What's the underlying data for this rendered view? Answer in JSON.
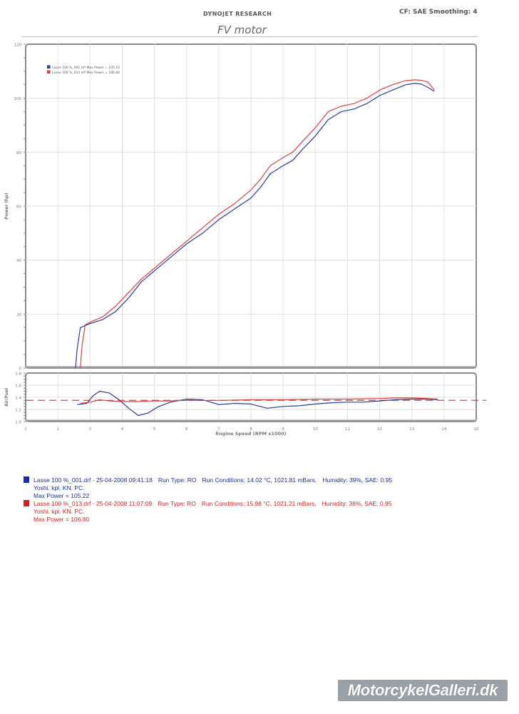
{
  "header": {
    "title": "DYNOJET RESEARCH",
    "subtitle": "FV motor",
    "correction": "CF: SAE  Smoothing: 4"
  },
  "chart_data": [
    {
      "type": "line",
      "title": "FV motor",
      "xlabel": "Engine Speed (RPM x1000)",
      "ylabel": "Power (hp)",
      "xlim": [
        1,
        15
      ],
      "ylim": [
        0,
        120
      ],
      "xticks": [
        "1",
        "2",
        "3",
        "4",
        "5",
        "6",
        "7",
        "8",
        "9",
        "10",
        "11",
        "12",
        "13",
        "14",
        "15"
      ],
      "yticks": [
        "0",
        "20",
        "40",
        "60",
        "80",
        "100",
        "120"
      ],
      "grid": true,
      "legend_position": "upper-left",
      "legend": [
        "Lasse 100 %_001.drf Max Power = 105.22",
        "Lasse 100 %_013.drf Max Power = 106.80"
      ],
      "series": [
        {
          "name": "Lasse 100 %_001.drf",
          "color": "#2a3a9a",
          "x": [
            2.55,
            2.6,
            2.7,
            3.0,
            3.4,
            3.8,
            4.2,
            4.6,
            5.0,
            5.5,
            6.0,
            6.5,
            7.0,
            7.5,
            8.0,
            8.3,
            8.6,
            9.0,
            9.3,
            9.6,
            10.0,
            10.4,
            10.8,
            11.2,
            11.6,
            12.0,
            12.4,
            12.8,
            13.1,
            13.3,
            13.5,
            13.7
          ],
          "y": [
            0,
            7,
            15,
            16.5,
            18,
            21,
            26,
            32,
            36,
            41,
            46,
            50,
            55,
            59,
            63,
            67,
            72,
            75,
            77,
            81,
            86,
            92,
            95,
            96,
            98,
            101,
            103,
            105,
            105.5,
            105.2,
            104,
            102.5
          ]
        },
        {
          "name": "Lasse 100 %_013.drf",
          "color": "#d94040",
          "x": [
            2.7,
            2.75,
            2.85,
            3.0,
            3.4,
            3.8,
            4.2,
            4.6,
            5.0,
            5.5,
            6.0,
            6.5,
            7.0,
            7.5,
            8.0,
            8.3,
            8.6,
            9.0,
            9.3,
            9.6,
            10.0,
            10.4,
            10.8,
            11.2,
            11.6,
            12.0,
            12.4,
            12.8,
            13.1,
            13.3,
            13.5,
            13.7
          ],
          "y": [
            0,
            8,
            16,
            17,
            19,
            23,
            28,
            33,
            37,
            42,
            47,
            52,
            57,
            61,
            66,
            70,
            75,
            78,
            80,
            84,
            89,
            95,
            97,
            98,
            100,
            103,
            105,
            106.5,
            106.8,
            106.6,
            106,
            103
          ]
        }
      ]
    },
    {
      "type": "line",
      "title": "",
      "xlabel": "Engine Speed (RPM x1000)",
      "ylabel": "Air/Fuel",
      "xlim": [
        1,
        15
      ],
      "ylim": [
        1.0,
        1.8
      ],
      "xticks": [
        "1",
        "2",
        "3",
        "4",
        "5",
        "6",
        "7",
        "8",
        "9",
        "10",
        "11",
        "12",
        "13",
        "14",
        "15"
      ],
      "yticks": [
        "1.0",
        "1.2",
        "1.4",
        "1.6",
        "1.8"
      ],
      "grid": true,
      "reference_line": {
        "value": 1.35,
        "style": "dashed",
        "color": "#d94040"
      },
      "series": [
        {
          "name": "Lasse 100 %_001.drf",
          "color": "#2a3a9a",
          "x": [
            2.6,
            2.9,
            3.1,
            3.3,
            3.6,
            3.9,
            4.2,
            4.5,
            4.8,
            5.1,
            5.5,
            6.0,
            6.5,
            7.0,
            7.5,
            8.0,
            8.5,
            9.0,
            9.5,
            10.0,
            10.5,
            11.0,
            11.5,
            12.0,
            12.5,
            13.0,
            13.5,
            13.8
          ],
          "y": [
            1.28,
            1.3,
            1.43,
            1.5,
            1.47,
            1.36,
            1.22,
            1.1,
            1.14,
            1.24,
            1.32,
            1.37,
            1.36,
            1.28,
            1.3,
            1.29,
            1.22,
            1.25,
            1.26,
            1.29,
            1.31,
            1.32,
            1.32,
            1.34,
            1.36,
            1.37,
            1.37,
            1.36
          ]
        },
        {
          "name": "Lasse 100 %_013.drf",
          "color": "#d94040",
          "x": [
            2.7,
            3.0,
            3.3,
            3.6,
            4.0,
            4.5,
            5.0,
            5.5,
            6.0,
            7.0,
            8.0,
            9.0,
            10.0,
            11.0,
            12.0,
            12.5,
            13.0,
            13.5,
            13.8
          ],
          "y": [
            1.3,
            1.32,
            1.36,
            1.34,
            1.33,
            1.33,
            1.34,
            1.34,
            1.35,
            1.35,
            1.36,
            1.36,
            1.37,
            1.37,
            1.38,
            1.39,
            1.39,
            1.38,
            1.37
          ]
        }
      ]
    }
  ],
  "legend_entries": [
    {
      "color": "#1c2f9a",
      "line1": "Lasse 100 %_001.drf - 25-04-2008 09:41:18",
      "run_type": "Run Type: RO",
      "conditions": "Run Conditions: 14.02 °C, 1021.81 mBars,",
      "humidity": "Humidity: 39%, SAE: 0.95",
      "line2": "Yoshi. kpl. KN. PC.",
      "line3": "Max Power = 105.22"
    },
    {
      "color": "#d81e1e",
      "line1": "Lasse 100 %_013.drf - 25-04-2008 11:07:09",
      "run_type": "Run Type: RO",
      "conditions": "Run Conditions: 15.98 °C, 1021.21 mBars,",
      "humidity": "Humidity: 36%, SAE: 0.95",
      "line2": "Yoshi. kpl. KN. PC.",
      "line3": "Max Power = 106.80"
    }
  ],
  "watermark": "MotorcykelGalleri.dk"
}
